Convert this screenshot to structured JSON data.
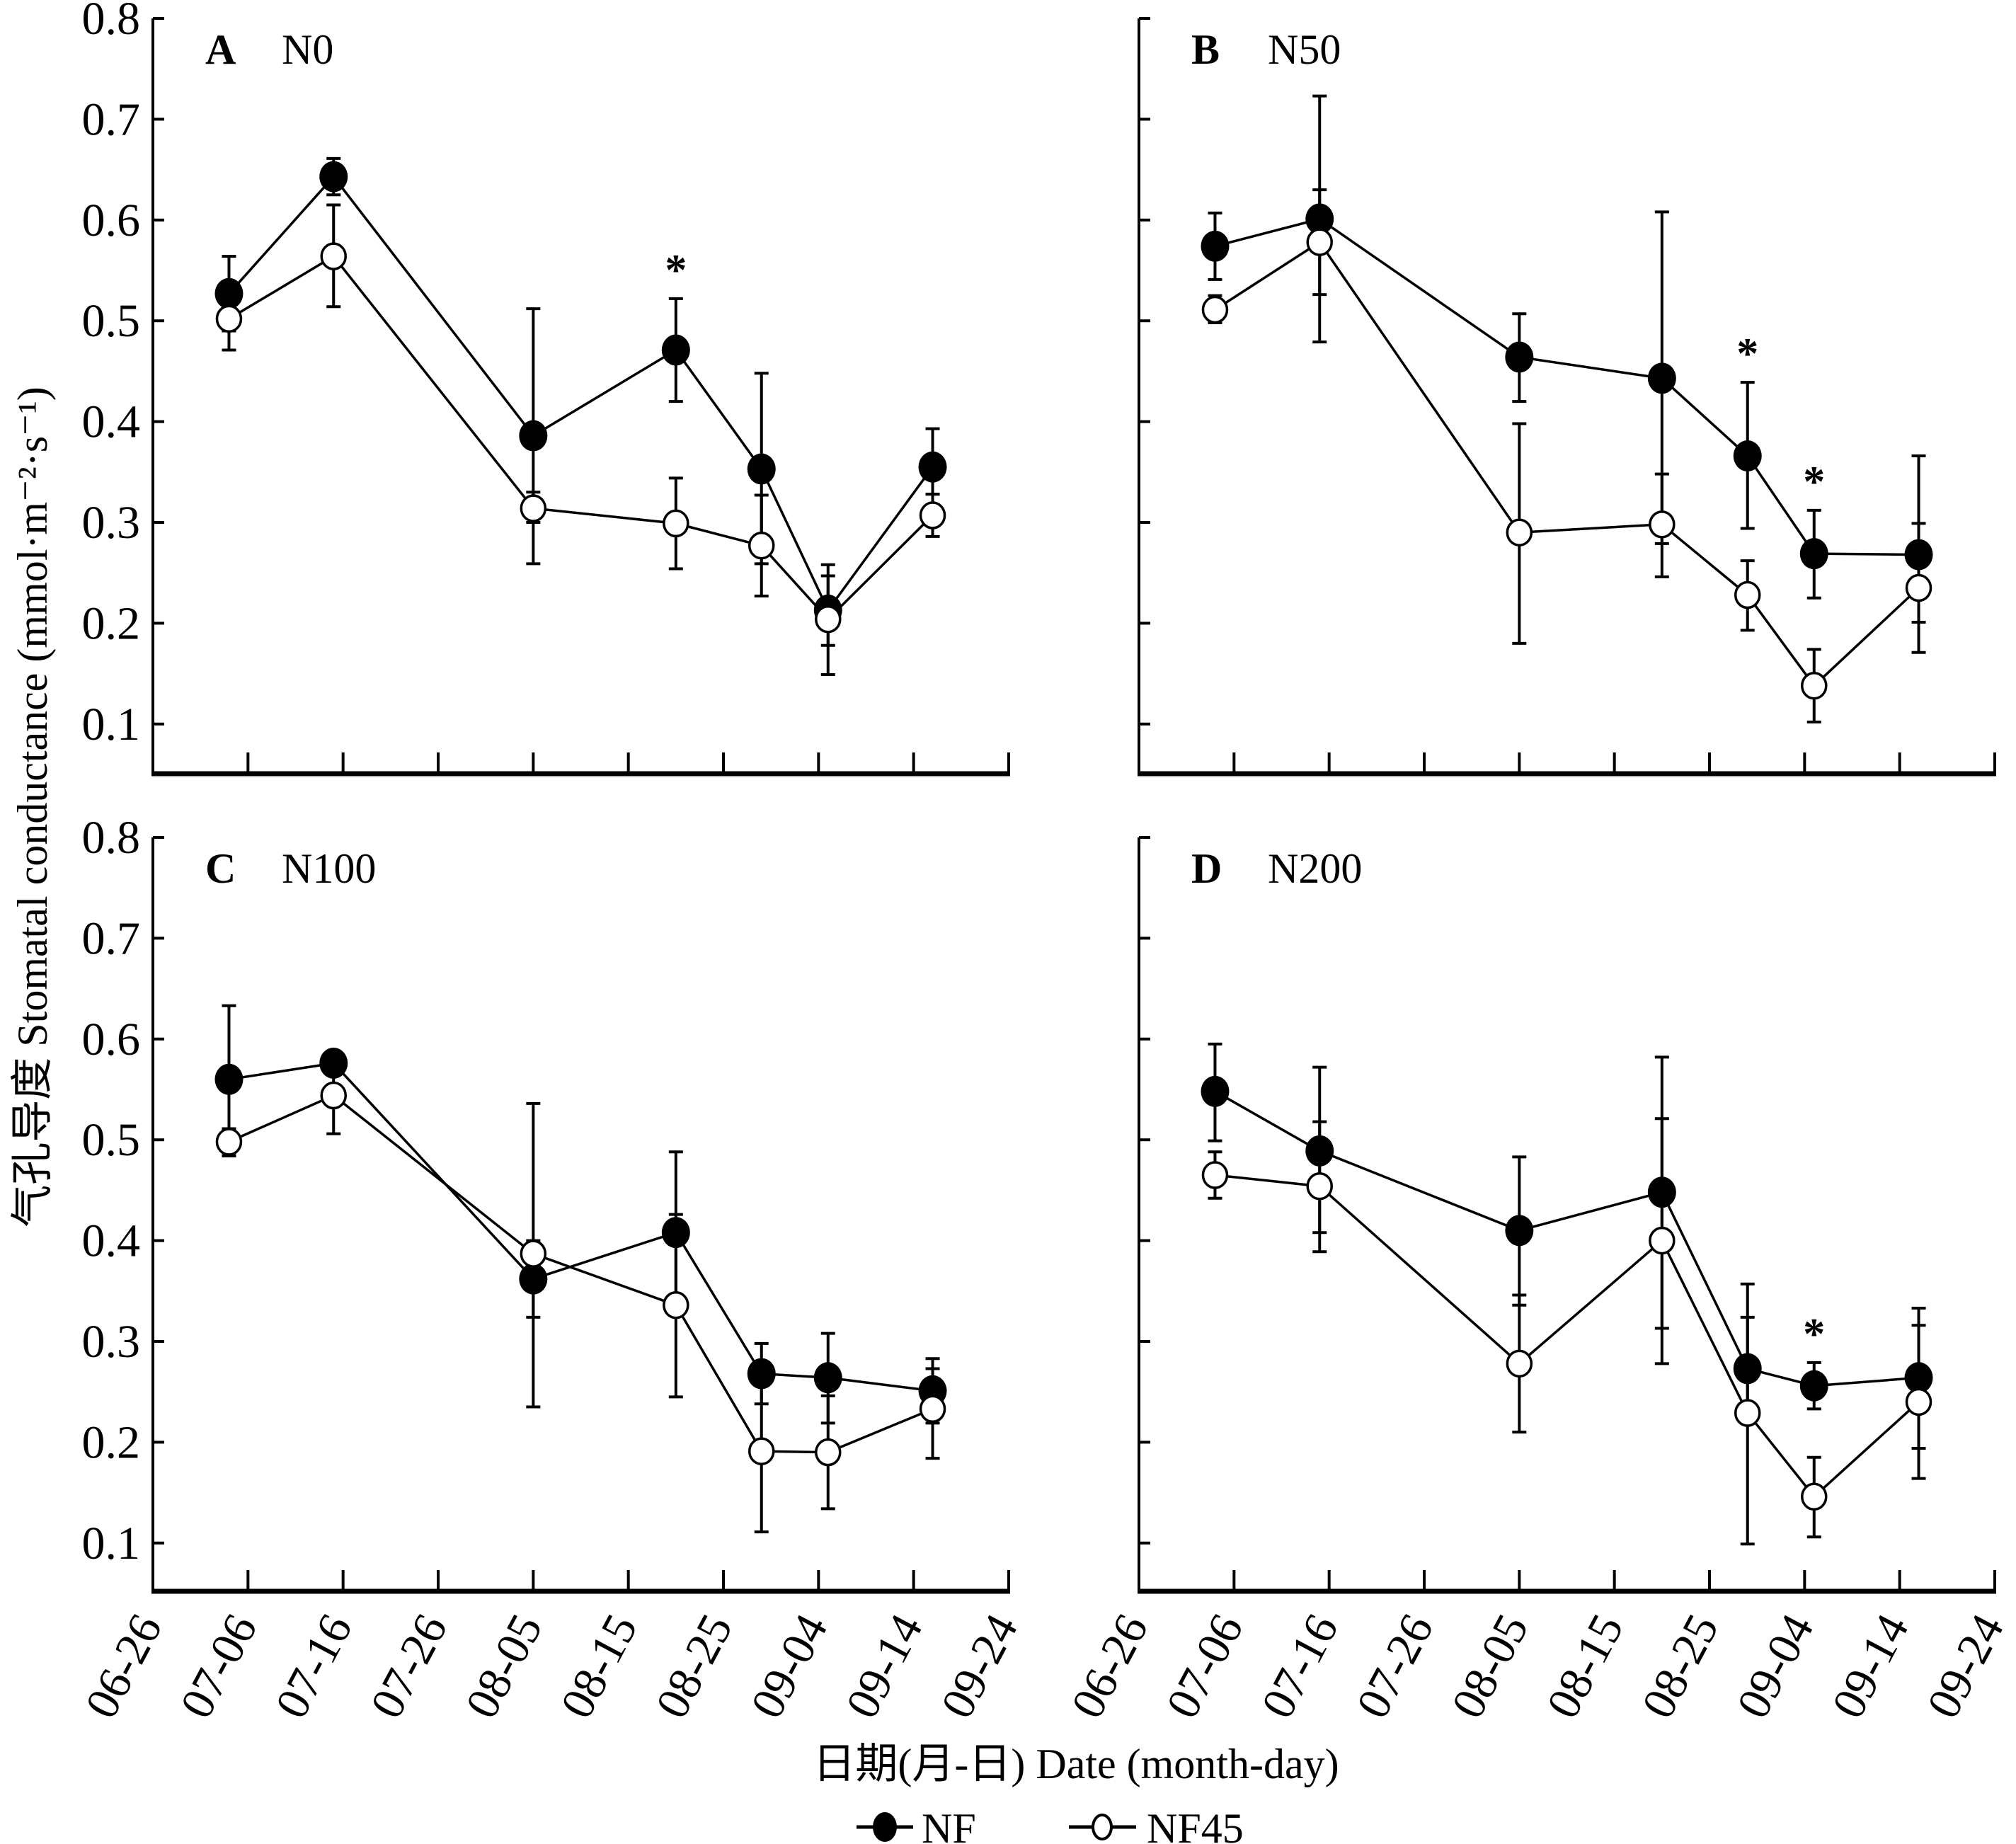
{
  "chart_data": {
    "type": "line",
    "layout": "2x2 panels, shared axes",
    "xlabel": "日期(月-日) Date (month-day)",
    "ylabel": "气孔导度 Stomatal conductance (mmol·m⁻²·s⁻¹)",
    "x_ticks": [
      "06-26",
      "07-06",
      "07-16",
      "07-26",
      "08-05",
      "08-15",
      "08-25",
      "09-04",
      "09-14",
      "09-24"
    ],
    "x_range": [
      "06-26",
      "09-24"
    ],
    "y_ticks": [
      "0.1",
      "0.2",
      "0.3",
      "0.4",
      "0.5",
      "0.6",
      "0.7",
      "0.8"
    ],
    "ylim": [
      0.05,
      0.8
    ],
    "grid": false,
    "legend": {
      "placement": "bottom-center",
      "entries": [
        {
          "name": "NF",
          "marker": "filled-circle"
        },
        {
          "name": "NF45",
          "marker": "open-circle"
        }
      ]
    },
    "x": [
      "07-04",
      "07-15",
      "08-05",
      "08-20",
      "08-29",
      "09-05",
      "09-16"
    ],
    "panels": [
      {
        "letter": "A",
        "name": "N0",
        "series": [
          {
            "name": "NF",
            "values": [
              0.527,
              0.643,
              0.386,
              0.471,
              0.353,
              0.213,
              0.355
            ],
            "err_upper": [
              0.564,
              0.661,
              0.512,
              0.522,
              0.448,
              0.258,
              0.393
            ],
            "err_lower": [
              0.49,
              0.625,
              0.259,
              0.42,
              0.259,
              0.178,
              0.328
            ]
          },
          {
            "name": "NF45",
            "values": [
              0.502,
              0.564,
              0.314,
              0.299,
              0.277,
              0.204,
              0.307
            ],
            "err_upper": [
              0.533,
              0.615,
              0.33,
              0.344,
              0.327,
              0.247,
              0.328
            ],
            "err_lower": [
              0.471,
              0.514,
              0.3,
              0.254,
              0.227,
              0.149,
              0.286
            ]
          }
        ],
        "significance": [
          "",
          "",
          "",
          "*",
          "",
          "",
          ""
        ]
      },
      {
        "letter": "B",
        "name": "N50",
        "series": [
          {
            "name": "NF",
            "values": [
              0.574,
              0.601,
              0.464,
              0.443,
              0.366,
              0.269,
              0.268
            ],
            "err_upper": [
              0.607,
              0.723,
              0.507,
              0.608,
              0.439,
              0.312,
              0.366
            ],
            "err_lower": [
              0.541,
              0.479,
              0.42,
              0.279,
              0.294,
              0.225,
              0.201
            ]
          },
          {
            "name": "NF45",
            "values": [
              0.511,
              0.578,
              0.29,
              0.298,
              0.228,
              0.138,
              0.235
            ],
            "err_upper": [
              0.525,
              0.63,
              0.398,
              0.348,
              0.262,
              0.174,
              0.299
            ],
            "err_lower": [
              0.498,
              0.526,
              0.18,
              0.246,
              0.193,
              0.102,
              0.171
            ]
          }
        ],
        "significance": [
          "",
          "",
          "",
          "",
          "*",
          "*",
          ""
        ]
      },
      {
        "letter": "C",
        "name": "N100",
        "series": [
          {
            "name": "NF",
            "values": [
              0.56,
              0.576,
              0.362,
              0.408,
              0.268,
              0.264,
              0.251
            ],
            "err_upper": [
              0.633,
              0.584,
              0.4,
              0.488,
              0.298,
              0.308,
              0.283
            ],
            "err_lower": [
              0.487,
              0.568,
              0.324,
              0.329,
              0.238,
              0.219,
              0.219
            ]
          },
          {
            "name": "NF45",
            "values": [
              0.498,
              0.544,
              0.387,
              0.336,
              0.191,
              0.19,
              0.233
            ],
            "err_upper": [
              0.511,
              0.582,
              0.536,
              0.426,
              0.271,
              0.246,
              0.273
            ],
            "err_lower": [
              0.484,
              0.506,
              0.235,
              0.245,
              0.111,
              0.134,
              0.184
            ]
          }
        ],
        "significance": [
          "",
          "",
          "",
          "",
          "",
          "",
          ""
        ]
      },
      {
        "letter": "D",
        "name": "N200",
        "series": [
          {
            "name": "NF",
            "values": [
              0.548,
              0.489,
              0.41,
              0.448,
              0.273,
              0.256,
              0.264
            ],
            "err_upper": [
              0.595,
              0.572,
              0.483,
              0.582,
              0.324,
              0.279,
              0.333
            ],
            "err_lower": [
              0.499,
              0.408,
              0.336,
              0.313,
              0.223,
              0.233,
              0.194
            ]
          },
          {
            "name": "NF45",
            "values": [
              0.465,
              0.454,
              0.278,
              0.4,
              0.229,
              0.146,
              0.24
            ],
            "err_upper": [
              0.488,
              0.518,
              0.346,
              0.521,
              0.357,
              0.185,
              0.316
            ],
            "err_lower": [
              0.442,
              0.389,
              0.21,
              0.278,
              0.099,
              0.106,
              0.164
            ]
          }
        ],
        "significance": [
          "",
          "",
          "",
          "",
          "",
          "*",
          ""
        ]
      }
    ]
  }
}
